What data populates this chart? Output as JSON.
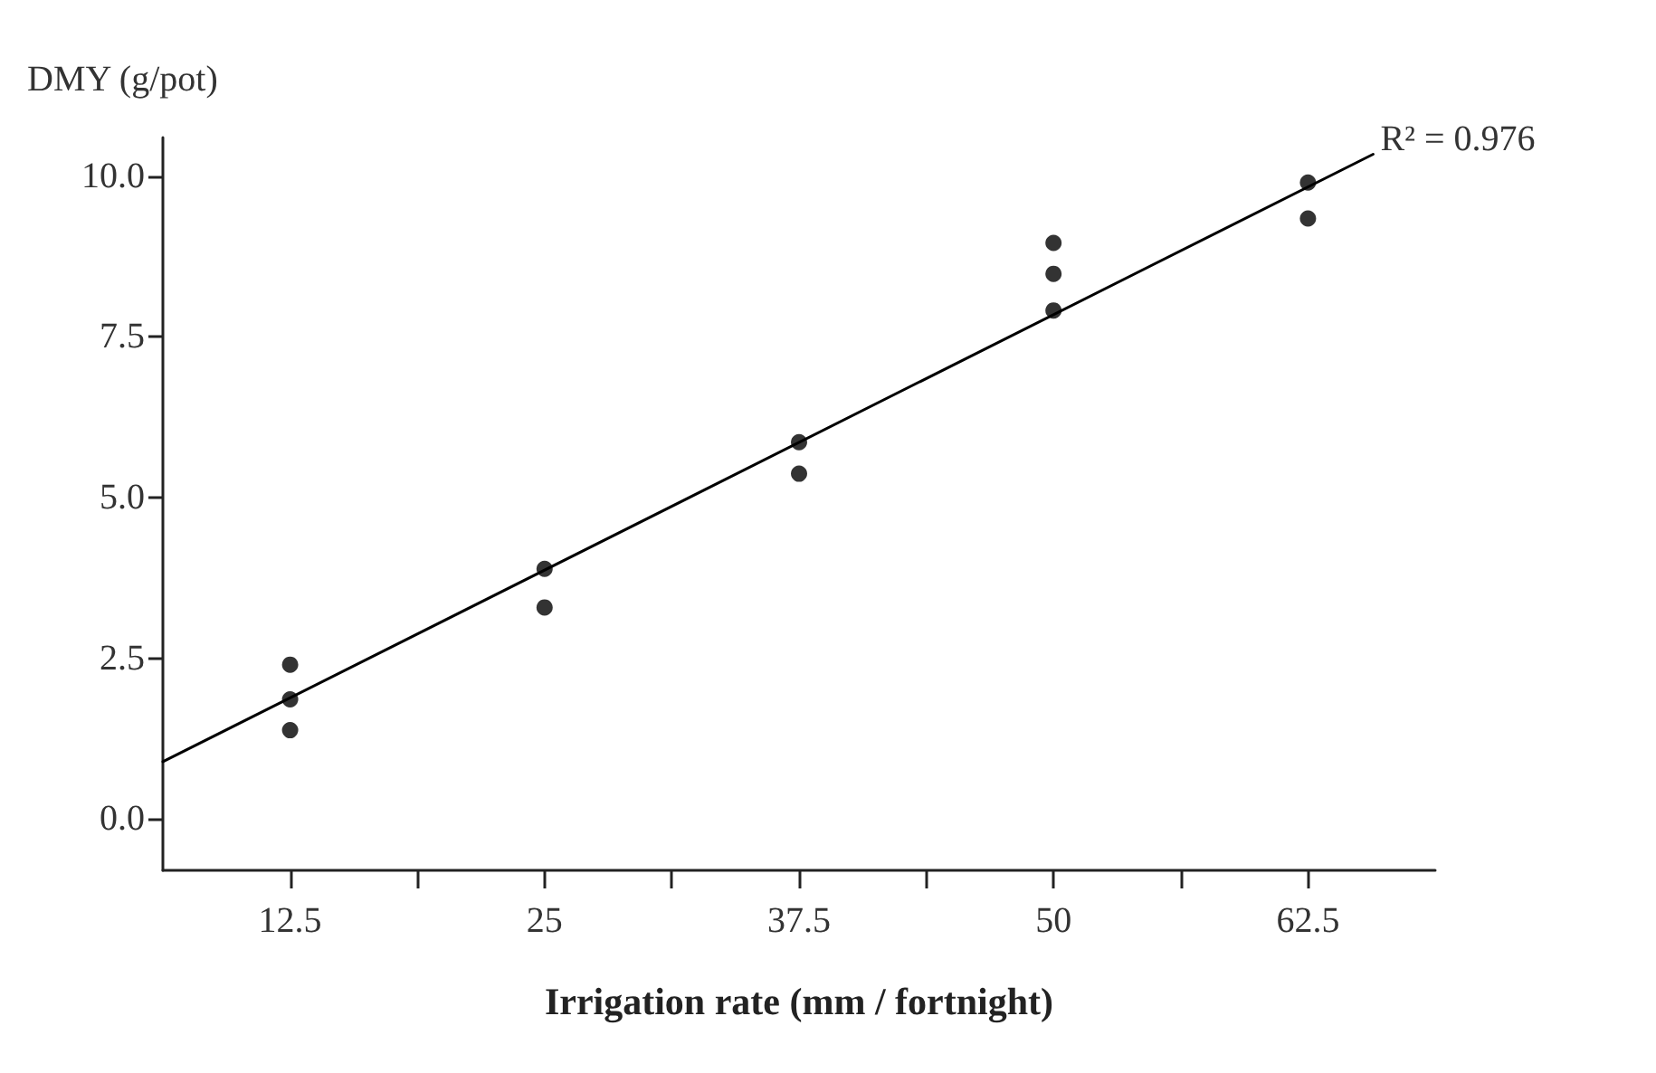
{
  "chart_data": {
    "type": "scatter",
    "xlabel": "Irrigation rate (mm / fortnight)",
    "ylabel": "DMY (g/pot)",
    "xlim": [
      6.25,
      68.75
    ],
    "xticks": [
      12.5,
      {
        "value": 18.75,
        "label": null
      },
      25,
      {
        "value": 31.25,
        "label": null
      },
      37.5,
      {
        "value": 43.75,
        "label": null
      },
      50,
      {
        "value": 56.25,
        "label": null
      },
      62.5
    ],
    "ylim": [
      -0.8,
      10.6
    ],
    "yticks": [
      {
        "value": 0,
        "label": "0.0"
      },
      2.5,
      {
        "value": 5,
        "label": "5.0"
      },
      7.5,
      {
        "value": 10,
        "label": "10.0"
      }
    ],
    "grid": false,
    "marker": "circle",
    "series": [
      {
        "color": "#000000",
        "x": [
          12.5,
          12.5,
          12.5,
          25,
          25,
          37.5,
          37.5,
          50,
          50,
          50,
          62.5,
          62.5
        ],
        "values": [
          2.4,
          1.86,
          1.38,
          3.89,
          3.29,
          5.86,
          5.37,
          8.96,
          8.48,
          7.91,
          9.9,
          9.34
        ]
      },
      {
        "type": "line",
        "color": "#000000",
        "marker": "none",
        "line_style": "solid",
        "x": [
          6.25,
          65.7
        ],
        "values": [
          0.89,
          10.34
        ]
      }
    ],
    "annotations": [
      {
        "text": "R² = 0.976",
        "x": 65.7,
        "y": 10.34
      }
    ]
  }
}
